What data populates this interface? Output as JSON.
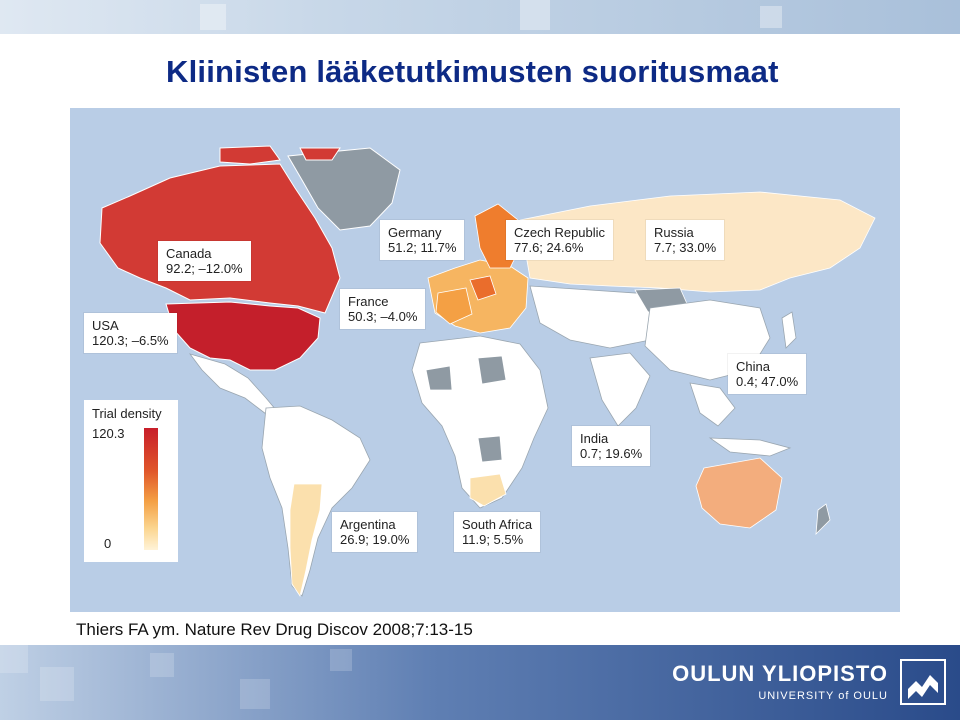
{
  "title": "Kliinisten lääketutkimusten suoritusmaat",
  "citation": "Thiers FA ym. Nature Rev Drug Discov 2008;7:13-15",
  "colors": {
    "title": "#0d2a85",
    "ocean": "#b9cde6",
    "high": "#c81e2a",
    "mid": "#ef7d2d",
    "low": "#fbd58f",
    "none": "#ffffff",
    "nodata": "#8f9aa3"
  },
  "legend": {
    "title": "Trial density",
    "max": "120.3",
    "min": "0"
  },
  "countries": [
    {
      "name": "Canada",
      "values": "92.2; –12.0%"
    },
    {
      "name": "USA",
      "values": "120.3; –6.5%"
    },
    {
      "name": "Germany",
      "values": "51.2; 11.7%"
    },
    {
      "name": "Czech Republic",
      "values": "77.6; 24.6%"
    },
    {
      "name": "Russia",
      "values": "7.7; 33.0%"
    },
    {
      "name": "France",
      "values": "50.3; –4.0%"
    },
    {
      "name": "China",
      "values": "0.4; 47.0%"
    },
    {
      "name": "India",
      "values": "0.7; 19.6%"
    },
    {
      "name": "Argentina",
      "values": "26.9; 19.0%"
    },
    {
      "name": "South Africa",
      "values": "11.9; 5.5%"
    }
  ],
  "logo": {
    "main": "OULUN YLIOPISTO",
    "sub": "UNIVERSITY of OULU"
  }
}
